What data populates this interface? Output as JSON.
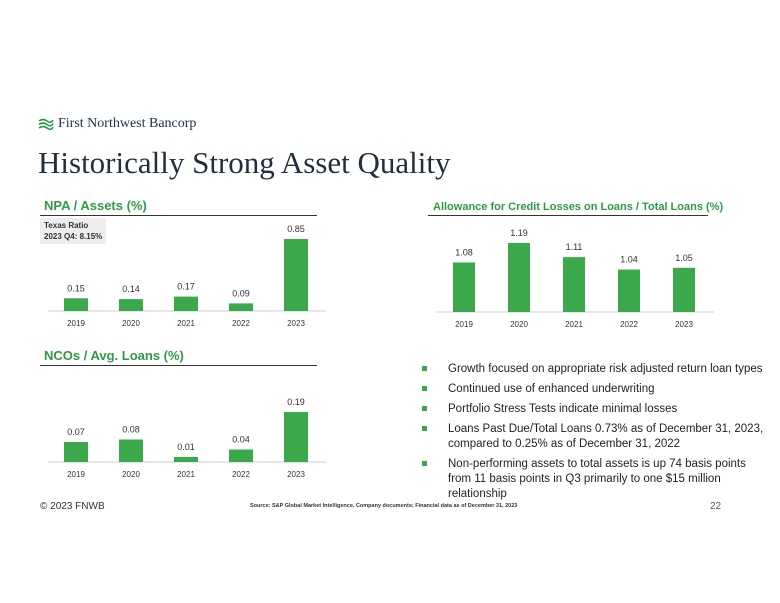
{
  "header": {
    "logo_text": "First Northwest Bancorp",
    "title": "Historically Strong Asset Quality"
  },
  "colors": {
    "accent": "#3aa84b",
    "title": "#1f2f3f"
  },
  "note": {
    "line1": "Texas Ratio",
    "line2": "2023 Q4: 8.15%"
  },
  "chart_data": [
    {
      "type": "bar",
      "title": "NPA / Assets (%)",
      "categories": [
        "2019",
        "2020",
        "2021",
        "2022",
        "2023"
      ],
      "values": [
        0.15,
        0.14,
        0.17,
        0.09,
        0.85
      ],
      "labels": [
        "0.15",
        "0.14",
        "0.17",
        "0.09",
        "0.85"
      ],
      "ylim": [
        0,
        0.85
      ]
    },
    {
      "type": "bar",
      "title": "Allowance for Credit Losses on Loans / Total Loans (%)",
      "categories": [
        "2019",
        "2020",
        "2021",
        "2022",
        "2023"
      ],
      "values": [
        1.08,
        1.19,
        1.11,
        1.04,
        1.05
      ],
      "labels": [
        "1.08",
        "1.19",
        "1.11",
        "1.04",
        "1.05"
      ],
      "ylim": [
        0.8,
        1.19
      ]
    },
    {
      "type": "bar",
      "title": "NCOs / Avg. Loans (%)",
      "categories": [
        "2019",
        "2020",
        "2021",
        "2022",
        "2023"
      ],
      "values": [
        0.07,
        0.08,
        0.01,
        0.04,
        0.19
      ],
      "labels": [
        "0.07",
        "0.08",
        "0.01",
        "0.04",
        "0.19"
      ],
      "ylim": [
        -0.01,
        0.19
      ]
    }
  ],
  "bullets": [
    "Growth focused on appropriate risk adjusted return loan types",
    "Continued use of enhanced underwriting",
    "Portfolio Stress Tests indicate minimal losses",
    "Loans Past Due/Total Loans 0.73% as of December 31, 2023, compared to 0.25% as of December 31, 2022",
    "Non-performing assets to total assets is up 74 basis points from 11 basis points in Q3 primarily to one $15 million relationship"
  ],
  "footer": {
    "copyright": "© 2023 FNWB",
    "source": "Source: S&P Global Market Intelligence, Company documents; Financial data as of December 31, 2023",
    "page": "22"
  }
}
